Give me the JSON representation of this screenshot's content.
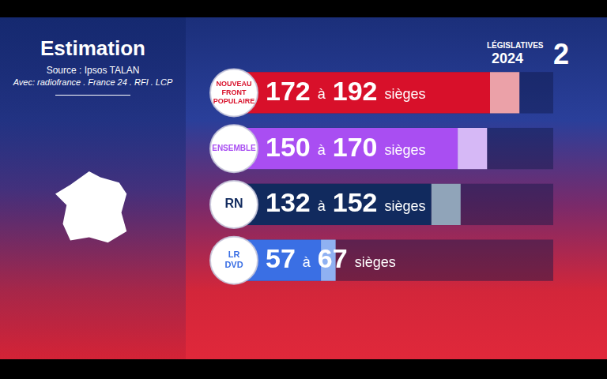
{
  "chart_data": {
    "type": "bar",
    "title": "Estimation",
    "subtitle": "Source : Ipsos TALAN",
    "annotations": [
      "Avec: radiofrance . France 24 . RFI . LCP",
      "LÉGISLATIVES",
      "2024",
      "2"
    ],
    "categories": [
      "NOUVEAU FRONT POPULAIRE",
      "ENSEMBLE",
      "RN",
      "LR DVD"
    ],
    "series": [
      {
        "values": [
          172,
          150,
          132,
          57
        ],
        "colors": [
          "#d8102a",
          "#a94ef2",
          "#112a5e",
          "#3a6fe4"
        ]
      },
      {
        "values": [
          192,
          170,
          152,
          67
        ],
        "colors": [
          "#eba1a8",
          "#d6b8f6",
          "#90a4b9",
          "#8fb1f2"
        ]
      }
    ],
    "value_labels": [
      "172 à 192 sièges",
      "150 à 170 sièges",
      "132 à 152 sièges",
      "57 à 67 sièges"
    ],
    "xlim": [
      0,
      215
    ],
    "xticks": [],
    "orientation": "horizontal",
    "stacked": false,
    "data_labels": true,
    "grid": false,
    "tick_labels": false
  }
}
